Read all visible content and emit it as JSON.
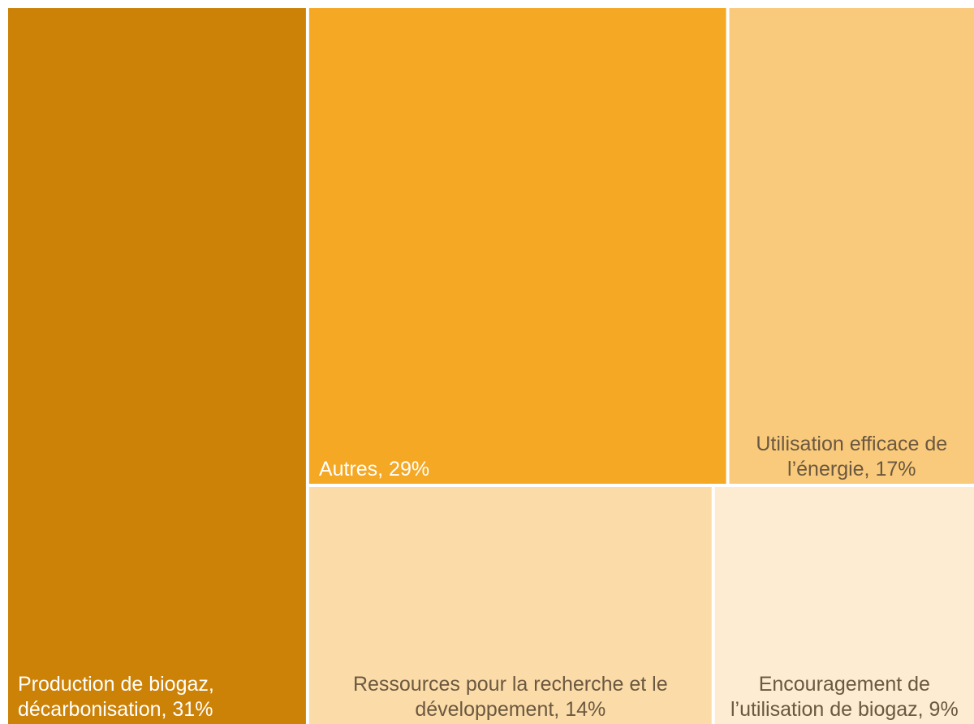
{
  "chart_data": {
    "type": "treemap",
    "value_labels": [
      "Production de biogaz, décarbonisation, 31%",
      "Autres, 29%",
      "Utilisation efficace de l’énergie, 17%",
      "Ressources pour la recherche et le développement, 14%",
      "Encouragement de l’utilisation de biogaz, 9%"
    ],
    "values": [
      31,
      29,
      17,
      14,
      9
    ],
    "colors": [
      "#cc8207",
      "#f5a823",
      "#f9ca7b",
      "#fbdca9",
      "#fdebd2"
    ]
  }
}
